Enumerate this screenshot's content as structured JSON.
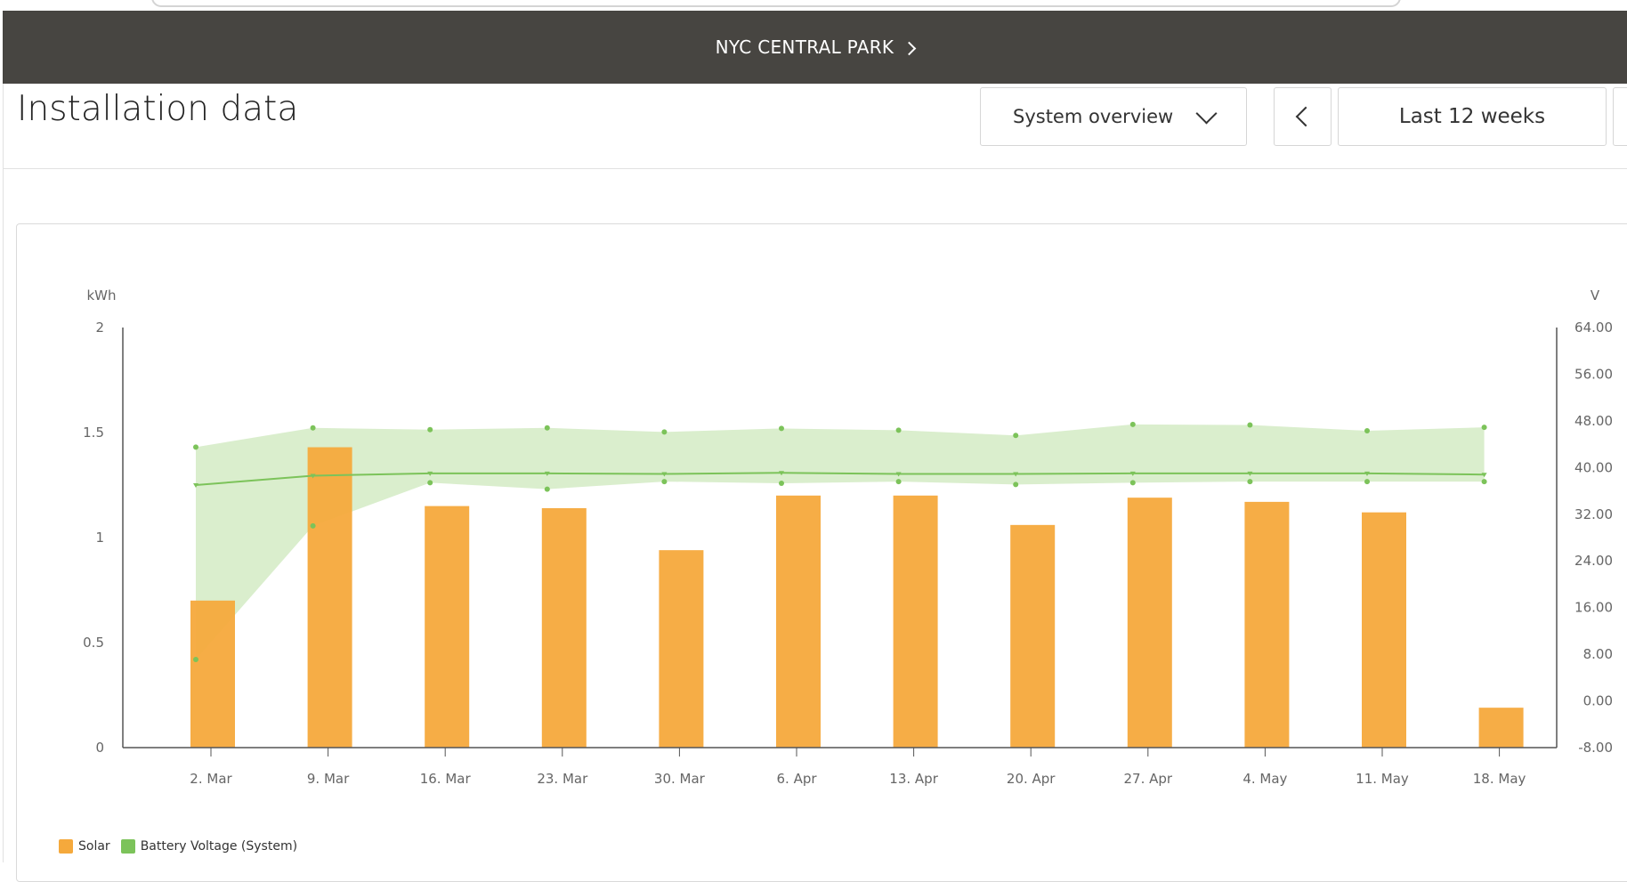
{
  "header": {
    "site_name": "NYC CENTRAL PARK"
  },
  "page": {
    "title": "Installation data"
  },
  "controls": {
    "view_select": "System overview",
    "range_label": "Last 12 weeks"
  },
  "colors": {
    "nav_bar": "#474541",
    "solar": "#f5a93c",
    "battery_line": "#7cc35a",
    "battery_band": "#d6ecc8"
  },
  "chart_data": {
    "type": "bar",
    "categories": [
      "2. Mar",
      "9. Mar",
      "16. Mar",
      "23. Mar",
      "30. Mar",
      "6. Apr",
      "13. Apr",
      "20. Apr",
      "27. Apr",
      "4. May",
      "11. May",
      "18. May"
    ],
    "y_left": {
      "label": "kWh",
      "range": [
        0,
        2
      ],
      "ticks": [
        "0",
        "0.5",
        "1",
        "1.5",
        "2"
      ],
      "tick_values": [
        0,
        0.5,
        1,
        1.5,
        2
      ]
    },
    "y_right": {
      "label": "V",
      "range": [
        -8,
        64
      ],
      "ticks": [
        "-8.00",
        "0.00",
        "8.00",
        "16.00",
        "24.00",
        "32.00",
        "40.00",
        "48.00",
        "56.00",
        "64.00"
      ],
      "tick_values": [
        -8,
        0,
        8,
        16,
        24,
        32,
        40,
        48,
        56,
        64
      ]
    },
    "series": [
      {
        "name": "Solar",
        "type": "bar",
        "axis": "left",
        "color": "#f5a93c",
        "values": [
          0.7,
          1.43,
          1.15,
          1.14,
          0.94,
          1.2,
          1.2,
          1.06,
          1.19,
          1.17,
          1.12,
          0.19
        ]
      },
      {
        "name": "Battery Voltage (System)",
        "type": "line",
        "axis": "right",
        "color": "#7cc35a",
        "values": [
          37.0,
          38.6,
          39.0,
          39.0,
          38.9,
          39.1,
          38.9,
          38.9,
          39.0,
          39.0,
          39.0,
          38.8
        ],
        "max": [
          43.5,
          46.8,
          46.5,
          46.8,
          46.1,
          46.7,
          46.4,
          45.5,
          47.4,
          47.3,
          46.3,
          46.9
        ],
        "min": [
          7.1,
          30.0,
          37.4,
          36.3,
          37.6,
          37.3,
          37.6,
          37.1,
          37.4,
          37.6,
          37.6,
          37.6
        ]
      }
    ],
    "legend": [
      "Solar",
      "Battery Voltage (System)"
    ],
    "legend_position": "bottom-left",
    "grid": false
  }
}
